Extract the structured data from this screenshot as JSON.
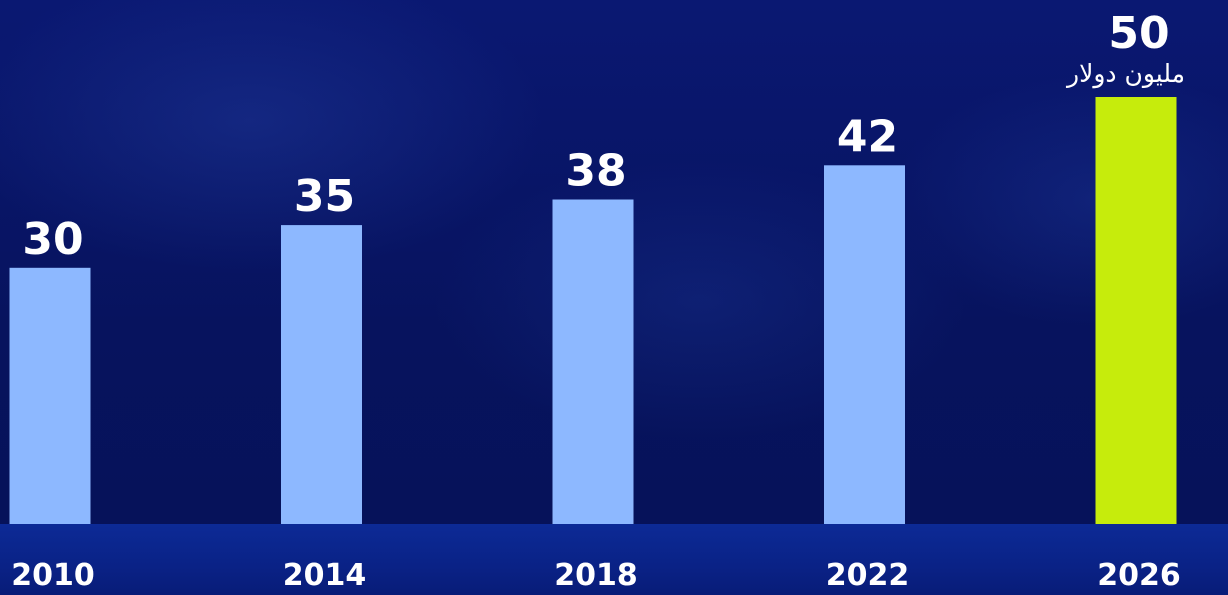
{
  "chart_data": {
    "type": "bar",
    "categories": [
      "2010",
      "2014",
      "2018",
      "2022",
      "2026"
    ],
    "values": [
      30,
      35,
      38,
      42,
      50
    ],
    "unit_annotation": "مليون دولار",
    "title": "",
    "xlabel": "",
    "ylabel": "",
    "ylim": [
      0,
      50
    ],
    "grid": false,
    "bar_color": "#8db8ff",
    "highlight_color": "#c6ec0c",
    "highlight_category": "2026",
    "text_color": "#ffffff",
    "background_color": "#07135e"
  }
}
